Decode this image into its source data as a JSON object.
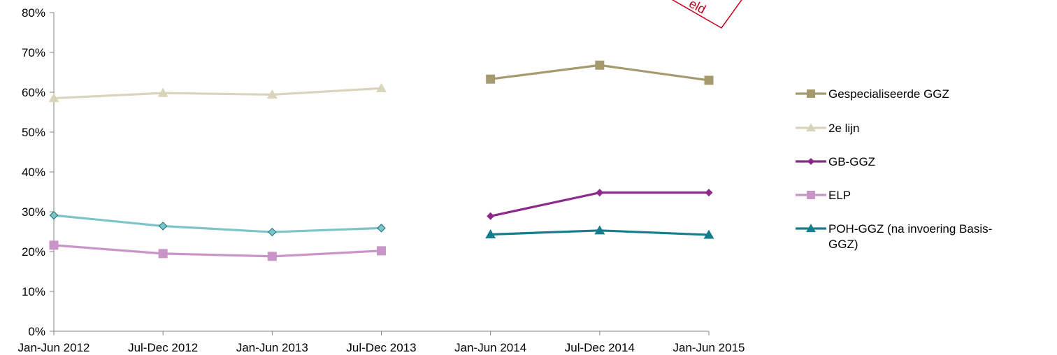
{
  "chart_data": {
    "type": "line",
    "categories": [
      "Jan-Jun 2012",
      "Jul-Dec 2012",
      "Jan-Jun 2013",
      "Jul-Dec 2013",
      "Jan-Jun 2014",
      "Jul-Dec 2014",
      "Jan-Jun 2015"
    ],
    "ylim": [
      0,
      80
    ],
    "yticks": [
      "0%",
      "10%",
      "20%",
      "30%",
      "40%",
      "50%",
      "60%",
      "70%",
      "80%"
    ],
    "grid": false,
    "legend_position": "right",
    "series": [
      {
        "name": "Gespecialiseerde GGZ",
        "color": "#a59a6e",
        "marker": "square",
        "values": [
          null,
          null,
          null,
          null,
          63.3,
          66.8,
          63.0
        ]
      },
      {
        "name": "2e lijn",
        "color": "#d9d4bc",
        "marker": "triangle",
        "values": [
          58.5,
          59.8,
          59.4,
          61.0,
          null,
          null,
          null
        ]
      },
      {
        "name": "GB-GGZ",
        "color": "#8b2a8b",
        "marker": "diamond",
        "values": [
          null,
          null,
          null,
          null,
          28.9,
          34.8,
          34.8
        ]
      },
      {
        "name": "ELP",
        "color": "#c995c9",
        "marker": "square",
        "values": [
          21.6,
          19.5,
          18.8,
          20.2,
          null,
          null,
          null
        ]
      },
      {
        "name": "POH-GGZ (na invoering Basis-GGZ)",
        "color": "#157d8e",
        "marker": "triangle",
        "values": [
          null,
          null,
          null,
          null,
          24.3,
          25.3,
          24.2
        ]
      },
      {
        "name": "",
        "color": "#7cc4c8",
        "marker": "diamond",
        "values": [
          29.1,
          26.4,
          24.9,
          25.9,
          null,
          null,
          null
        ]
      }
    ],
    "annotations": [
      "eld"
    ]
  }
}
